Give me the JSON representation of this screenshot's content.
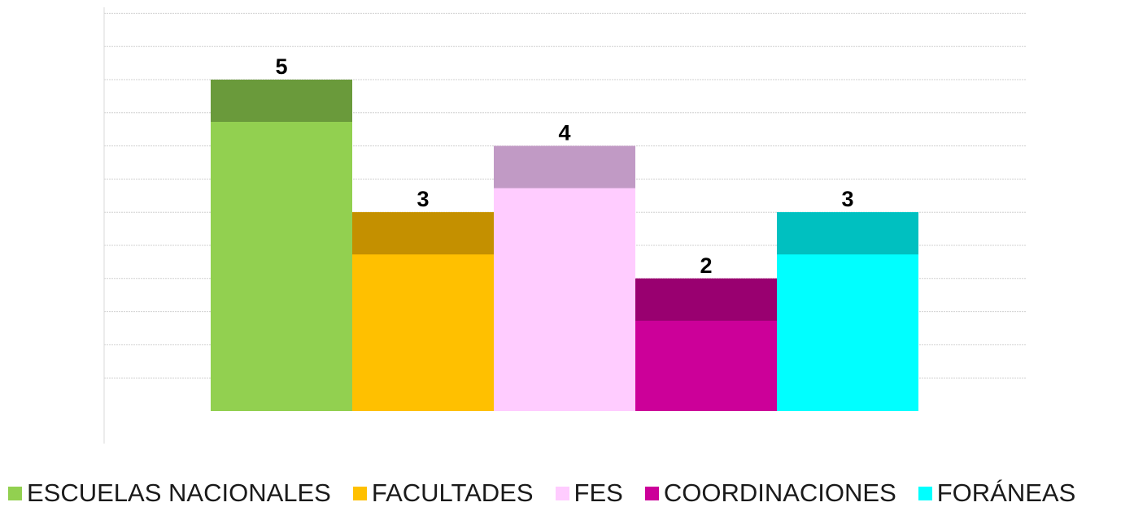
{
  "chart_data": {
    "type": "bar",
    "categories": [
      "ESCUELAS NACIONALES",
      "FACULTADES",
      "FES",
      "COORDINACIONES",
      "FORÁNEAS"
    ],
    "values": [
      5,
      3,
      4,
      2,
      3
    ],
    "colors": [
      "#92d050",
      "#ffc000",
      "#ffccff",
      "#cc0099",
      "#00ffff"
    ],
    "top_colors": [
      "#6a9a3b",
      "#c49000",
      "#c19ac5",
      "#990070",
      "#00c0c0"
    ],
    "data_labels": [
      "5",
      "3",
      "4",
      "2",
      "3"
    ],
    "ylim": [
      0,
      6
    ],
    "grid": true,
    "legend_position": "bottom",
    "title": "",
    "xlabel": "",
    "ylabel": ""
  },
  "legend": [
    {
      "label": "ESCUELAS NACIONALES",
      "color": "#92d050"
    },
    {
      "label": "FACULTADES",
      "color": "#ffc000"
    },
    {
      "label": "FES",
      "color": "#ffccff"
    },
    {
      "label": "COORDINACIONES",
      "color": "#cc0099"
    },
    {
      "label": "FORÁNEAS",
      "color": "#00ffff"
    }
  ]
}
